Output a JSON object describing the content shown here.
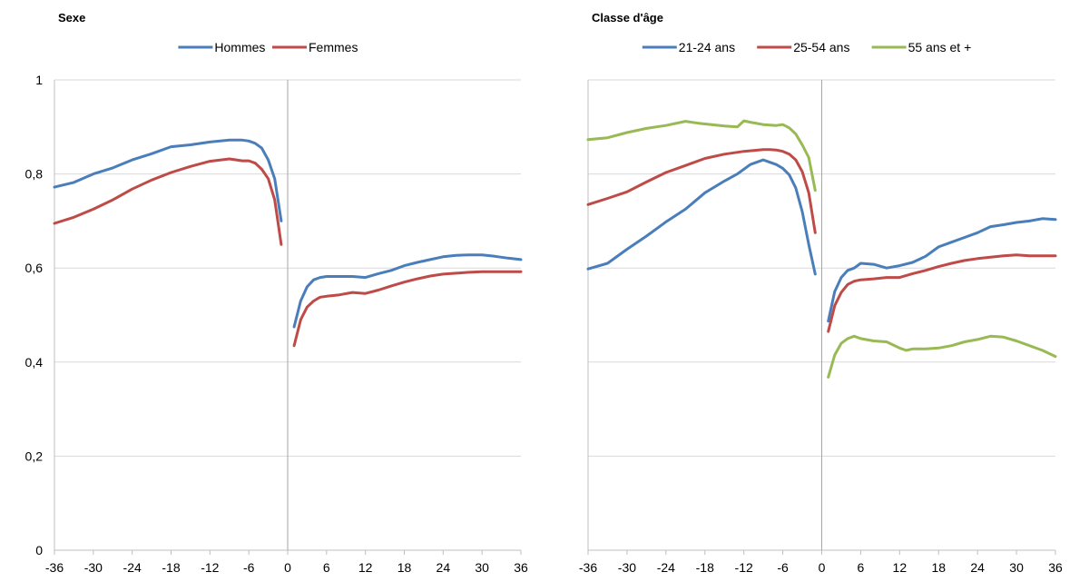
{
  "chart_data": [
    {
      "type": "line",
      "title": "Sexe",
      "xlabel": "",
      "ylabel": "",
      "ylim": [
        0,
        1
      ],
      "xlim": [
        -36,
        36
      ],
      "yticks": [
        0,
        0.2,
        0.4,
        0.6,
        0.8,
        1
      ],
      "ytick_labels": [
        "0",
        "0,2",
        "0,4",
        "0,6",
        "0,8",
        "1"
      ],
      "xticks": [
        -36,
        -30,
        -24,
        -18,
        -12,
        -6,
        0,
        6,
        12,
        18,
        24,
        30,
        36
      ],
      "xtick_labels": [
        "-36",
        "-30",
        "-24",
        "-18",
        "-12",
        "-6",
        "0",
        "6",
        "12",
        "18",
        "24",
        "30",
        "36"
      ],
      "grid": true,
      "legend": "top",
      "series": [
        {
          "name": "Hommes",
          "color": "#4a7ebb",
          "x": [
            -36,
            -33,
            -30,
            -27,
            -24,
            -21,
            -18,
            -15,
            -12,
            -9,
            -7,
            -6,
            -5,
            -4,
            -3,
            -2,
            -1,
            1,
            2,
            3,
            4,
            5,
            6,
            8,
            10,
            12,
            14,
            16,
            18,
            20,
            22,
            24,
            26,
            28,
            30,
            32,
            34,
            36
          ],
          "values": [
            0.772,
            0.782,
            0.8,
            0.813,
            0.83,
            0.843,
            0.858,
            0.862,
            0.868,
            0.872,
            0.872,
            0.87,
            0.865,
            0.855,
            0.83,
            0.79,
            0.7,
            0.475,
            0.53,
            0.56,
            0.575,
            0.58,
            0.582,
            0.582,
            0.582,
            0.58,
            0.588,
            0.595,
            0.605,
            0.612,
            0.618,
            0.624,
            0.627,
            0.628,
            0.628,
            0.625,
            0.621,
            0.618
          ]
        },
        {
          "name": "Femmes",
          "color": "#be4b48",
          "x": [
            -36,
            -33,
            -30,
            -27,
            -24,
            -21,
            -18,
            -15,
            -12,
            -9,
            -7,
            -6,
            -5,
            -4,
            -3,
            -2,
            -1,
            1,
            2,
            3,
            4,
            5,
            6,
            8,
            10,
            12,
            14,
            16,
            18,
            20,
            22,
            24,
            26,
            28,
            30,
            32,
            34,
            36
          ],
          "values": [
            0.695,
            0.708,
            0.725,
            0.745,
            0.768,
            0.787,
            0.803,
            0.816,
            0.827,
            0.832,
            0.828,
            0.828,
            0.823,
            0.81,
            0.79,
            0.745,
            0.65,
            0.435,
            0.49,
            0.517,
            0.53,
            0.538,
            0.54,
            0.543,
            0.548,
            0.546,
            0.553,
            0.562,
            0.57,
            0.577,
            0.583,
            0.587,
            0.589,
            0.591,
            0.592,
            0.592,
            0.592,
            0.592
          ]
        }
      ]
    },
    {
      "type": "line",
      "title": "Classe d'âge",
      "xlabel": "",
      "ylabel": "",
      "ylim": [
        0,
        1
      ],
      "xlim": [
        -36,
        36
      ],
      "xticks": [
        -36,
        -30,
        -24,
        -18,
        -12,
        -6,
        0,
        6,
        12,
        18,
        24,
        30,
        36
      ],
      "xtick_labels": [
        "-36",
        "-30",
        "-24",
        "-18",
        "-12",
        "-6",
        "0",
        "6",
        "12",
        "18",
        "24",
        "30",
        "36"
      ],
      "grid": true,
      "legend": "top",
      "series": [
        {
          "name": "21-24 ans",
          "color": "#4a7ebb",
          "x": [
            -36,
            -33,
            -30,
            -27,
            -24,
            -21,
            -18,
            -15,
            -13,
            -11,
            -9,
            -8,
            -7,
            -6,
            -5,
            -4,
            -3,
            -2,
            -1,
            1,
            2,
            3,
            4,
            5,
            6,
            8,
            10,
            12,
            14,
            16,
            18,
            20,
            22,
            24,
            26,
            28,
            30,
            32,
            34,
            36
          ],
          "values": [
            0.598,
            0.61,
            0.64,
            0.668,
            0.698,
            0.725,
            0.76,
            0.785,
            0.8,
            0.82,
            0.83,
            0.825,
            0.82,
            0.812,
            0.798,
            0.77,
            0.72,
            0.65,
            0.587,
            0.487,
            0.55,
            0.58,
            0.595,
            0.6,
            0.61,
            0.608,
            0.6,
            0.605,
            0.612,
            0.625,
            0.645,
            0.655,
            0.665,
            0.675,
            0.688,
            0.692,
            0.697,
            0.7,
            0.705,
            0.703
          ]
        },
        {
          "name": "25-54 ans",
          "color": "#be4b48",
          "x": [
            -36,
            -33,
            -30,
            -27,
            -24,
            -21,
            -18,
            -15,
            -12,
            -9,
            -8,
            -7,
            -6,
            -5,
            -4,
            -3,
            -2,
            -1,
            1,
            2,
            3,
            4,
            5,
            6,
            8,
            10,
            12,
            14,
            16,
            18,
            20,
            22,
            24,
            26,
            28,
            30,
            32,
            34,
            36
          ],
          "values": [
            0.735,
            0.748,
            0.762,
            0.783,
            0.803,
            0.818,
            0.833,
            0.842,
            0.848,
            0.852,
            0.852,
            0.851,
            0.848,
            0.842,
            0.83,
            0.805,
            0.76,
            0.675,
            0.465,
            0.52,
            0.548,
            0.565,
            0.572,
            0.575,
            0.577,
            0.58,
            0.58,
            0.588,
            0.595,
            0.603,
            0.61,
            0.616,
            0.62,
            0.623,
            0.626,
            0.628,
            0.626,
            0.626,
            0.626
          ]
        },
        {
          "name": "55 ans et +",
          "color": "#98b954",
          "x": [
            -36,
            -33,
            -30,
            -27,
            -24,
            -21,
            -19,
            -17,
            -15,
            -13,
            -12,
            -11,
            -9,
            -7,
            -6,
            -5,
            -4,
            -3,
            -2,
            -1,
            1,
            2,
            3,
            4,
            5,
            6,
            8,
            10,
            12,
            13,
            14,
            16,
            18,
            20,
            22,
            24,
            26,
            28,
            30,
            32,
            34,
            36
          ],
          "values": [
            0.873,
            0.877,
            0.888,
            0.897,
            0.903,
            0.912,
            0.908,
            0.905,
            0.902,
            0.9,
            0.913,
            0.91,
            0.905,
            0.903,
            0.905,
            0.898,
            0.885,
            0.862,
            0.835,
            0.765,
            0.368,
            0.415,
            0.44,
            0.45,
            0.455,
            0.45,
            0.445,
            0.443,
            0.43,
            0.425,
            0.428,
            0.428,
            0.43,
            0.435,
            0.443,
            0.448,
            0.455,
            0.453,
            0.445,
            0.435,
            0.425,
            0.412
          ]
        }
      ]
    }
  ]
}
